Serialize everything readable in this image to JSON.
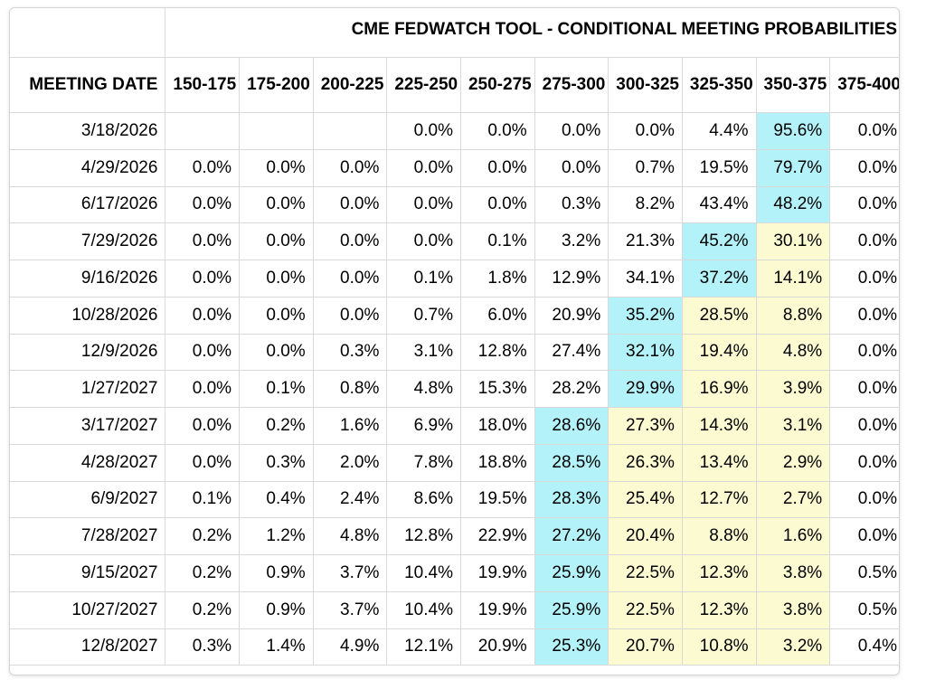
{
  "chart_data": {
    "type": "table",
    "title": "CME FEDWATCH TOOL - CONDITIONAL MEETING PROBABILITIES",
    "row_header_label": "MEETING DATE",
    "columns": [
      "150-175",
      "175-200",
      "200-225",
      "225-250",
      "250-275",
      "275-300",
      "300-325",
      "325-350",
      "350-375",
      "375-400"
    ],
    "rows": [
      {
        "date": "3/18/2026",
        "values": [
          "",
          "",
          "",
          "0.0%",
          "0.0%",
          "0.0%",
          "0.0%",
          "4.4%",
          "95.6%",
          "0.0%"
        ],
        "cyan": 8,
        "yellow": []
      },
      {
        "date": "4/29/2026",
        "values": [
          "0.0%",
          "0.0%",
          "0.0%",
          "0.0%",
          "0.0%",
          "0.0%",
          "0.7%",
          "19.5%",
          "79.7%",
          "0.0%"
        ],
        "cyan": 8,
        "yellow": []
      },
      {
        "date": "6/17/2026",
        "values": [
          "0.0%",
          "0.0%",
          "0.0%",
          "0.0%",
          "0.0%",
          "0.3%",
          "8.2%",
          "43.4%",
          "48.2%",
          "0.0%"
        ],
        "cyan": 8,
        "yellow": []
      },
      {
        "date": "7/29/2026",
        "values": [
          "0.0%",
          "0.0%",
          "0.0%",
          "0.0%",
          "0.1%",
          "3.2%",
          "21.3%",
          "45.2%",
          "30.1%",
          "0.0%"
        ],
        "cyan": 7,
        "yellow": [
          8
        ]
      },
      {
        "date": "9/16/2026",
        "values": [
          "0.0%",
          "0.0%",
          "0.0%",
          "0.1%",
          "1.8%",
          "12.9%",
          "34.1%",
          "37.2%",
          "14.1%",
          "0.0%"
        ],
        "cyan": 7,
        "yellow": [
          8
        ]
      },
      {
        "date": "10/28/2026",
        "values": [
          "0.0%",
          "0.0%",
          "0.0%",
          "0.7%",
          "6.0%",
          "20.9%",
          "35.2%",
          "28.5%",
          "8.8%",
          "0.0%"
        ],
        "cyan": 6,
        "yellow": [
          7,
          8
        ]
      },
      {
        "date": "12/9/2026",
        "values": [
          "0.0%",
          "0.0%",
          "0.3%",
          "3.1%",
          "12.8%",
          "27.4%",
          "32.1%",
          "19.4%",
          "4.8%",
          "0.0%"
        ],
        "cyan": 6,
        "yellow": [
          7,
          8
        ]
      },
      {
        "date": "1/27/2027",
        "values": [
          "0.0%",
          "0.1%",
          "0.8%",
          "4.8%",
          "15.3%",
          "28.2%",
          "29.9%",
          "16.9%",
          "3.9%",
          "0.0%"
        ],
        "cyan": 6,
        "yellow": [
          7,
          8
        ]
      },
      {
        "date": "3/17/2027",
        "values": [
          "0.0%",
          "0.2%",
          "1.6%",
          "6.9%",
          "18.0%",
          "28.6%",
          "27.3%",
          "14.3%",
          "3.1%",
          "0.0%"
        ],
        "cyan": 5,
        "yellow": [
          6,
          7,
          8
        ]
      },
      {
        "date": "4/28/2027",
        "values": [
          "0.0%",
          "0.3%",
          "2.0%",
          "7.8%",
          "18.8%",
          "28.5%",
          "26.3%",
          "13.4%",
          "2.9%",
          "0.0%"
        ],
        "cyan": 5,
        "yellow": [
          6,
          7,
          8
        ]
      },
      {
        "date": "6/9/2027",
        "values": [
          "0.1%",
          "0.4%",
          "2.4%",
          "8.6%",
          "19.5%",
          "28.3%",
          "25.4%",
          "12.7%",
          "2.7%",
          "0.0%"
        ],
        "cyan": 5,
        "yellow": [
          6,
          7,
          8
        ]
      },
      {
        "date": "7/28/2027",
        "values": [
          "0.2%",
          "1.2%",
          "4.8%",
          "12.8%",
          "22.9%",
          "27.2%",
          "20.4%",
          "8.8%",
          "1.6%",
          "0.0%"
        ],
        "cyan": 5,
        "yellow": [
          6,
          7,
          8
        ]
      },
      {
        "date": "9/15/2027",
        "values": [
          "0.2%",
          "0.9%",
          "3.7%",
          "10.4%",
          "19.9%",
          "25.9%",
          "22.5%",
          "12.3%",
          "3.8%",
          "0.5%"
        ],
        "cyan": 5,
        "yellow": [
          6,
          7,
          8
        ]
      },
      {
        "date": "10/27/2027",
        "values": [
          "0.2%",
          "0.9%",
          "3.7%",
          "10.4%",
          "19.9%",
          "25.9%",
          "22.5%",
          "12.3%",
          "3.8%",
          "0.5%"
        ],
        "cyan": 5,
        "yellow": [
          6,
          7,
          8
        ]
      },
      {
        "date": "12/8/2027",
        "values": [
          "0.3%",
          "1.4%",
          "4.9%",
          "12.1%",
          "20.9%",
          "25.3%",
          "20.7%",
          "10.8%",
          "3.2%",
          "0.4%"
        ],
        "cyan": 5,
        "yellow": [
          6,
          7,
          8
        ]
      }
    ]
  },
  "colors": {
    "highlight_max": "#b3f2f8",
    "highlight_current": "#fbfad0",
    "grid": "#d9d9d9"
  }
}
